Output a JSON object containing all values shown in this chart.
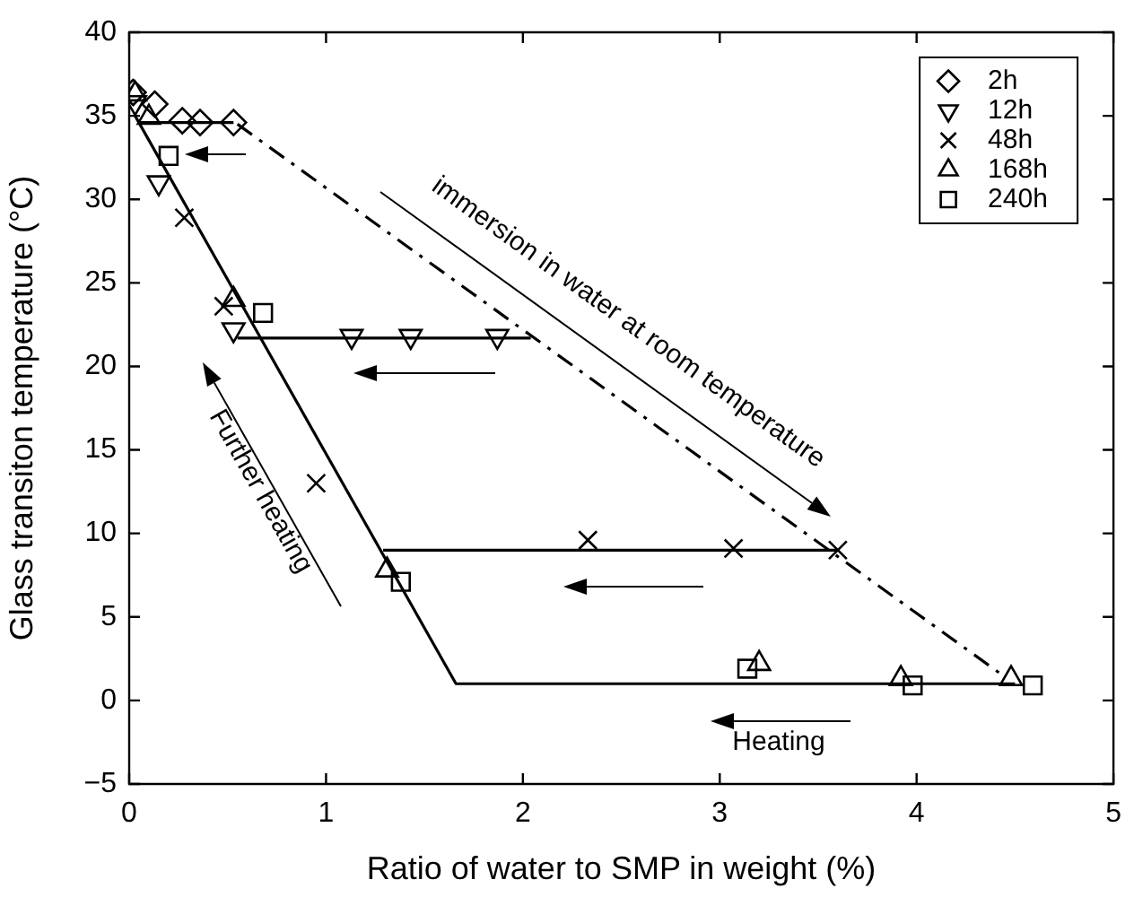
{
  "chart_data": {
    "type": "scatter",
    "xlabel": "Ratio of water to SMP in weight (%)",
    "ylabel": "Glass transiton temperature (°C)",
    "xlim": [
      0,
      5
    ],
    "xticks": [
      0,
      1,
      2,
      3,
      4,
      5
    ],
    "ylim": [
      -5,
      40
    ],
    "yticks": [
      {
        "value": -5,
        "label": "−5"
      },
      0,
      5,
      10,
      15,
      20,
      25,
      30,
      35,
      40
    ],
    "grid": false,
    "legend": "top right",
    "annotations": [
      "immersion in water at room temperature",
      "Further heating",
      "Heating"
    ],
    "series": [
      {
        "type": "line",
        "marker": "none",
        "line_style": "solid",
        "color": "#000000",
        "x": [
          0.03,
          1.66,
          4.5
        ],
        "values": [
          35.0,
          1.0,
          1.0
        ]
      },
      {
        "type": "line",
        "marker": "none",
        "line_style": "solid",
        "color": "#000000",
        "x": [
          0.05,
          0.53
        ],
        "values": [
          34.6,
          34.6
        ]
      },
      {
        "type": "line",
        "marker": "none",
        "line_style": "solid",
        "color": "#000000",
        "x": [
          0.55,
          2.04
        ],
        "values": [
          21.7,
          21.7
        ]
      },
      {
        "type": "line",
        "marker": "none",
        "line_style": "solid",
        "color": "#000000",
        "x": [
          1.29,
          3.6
        ],
        "values": [
          9.0,
          9.0
        ]
      },
      {
        "type": "line",
        "marker": "none",
        "line_style": "dashed",
        "color": "#000000",
        "x": [
          0.55,
          4.45
        ],
        "values": [
          34.5,
          1.4
        ]
      },
      {
        "name": "2h",
        "marker": "diamond",
        "color": "#000000",
        "x": [
          0.02,
          0.13,
          0.27,
          0.36,
          0.53
        ],
        "values": [
          36.4,
          35.7,
          34.7,
          34.6,
          34.6
        ]
      },
      {
        "name": "12h",
        "marker": "triangle-down",
        "color": "#000000",
        "x": [
          0.03,
          0.15,
          0.53,
          1.13,
          1.43,
          1.87
        ],
        "values": [
          35.8,
          31.0,
          22.2,
          21.8,
          21.8,
          21.8
        ]
      },
      {
        "name": "48h",
        "marker": "cross",
        "color": "#000000",
        "x": [
          0.28,
          0.48,
          0.95,
          2.33,
          3.07,
          3.6
        ],
        "values": [
          28.9,
          23.6,
          13.0,
          9.6,
          9.1,
          9.0
        ]
      },
      {
        "name": "168h",
        "marker": "triangle",
        "color": "#000000",
        "x": [
          0.03,
          0.1,
          0.53,
          1.31,
          3.2,
          3.92,
          4.48
        ],
        "values": [
          36.3,
          34.9,
          24.0,
          7.8,
          2.2,
          1.3,
          1.3
        ]
      },
      {
        "name": "240h",
        "marker": "square",
        "color": "#000000",
        "x": [
          0.2,
          0.68,
          1.38,
          3.14,
          3.98,
          4.59
        ],
        "values": [
          32.6,
          23.2,
          7.1,
          1.9,
          0.9,
          0.9
        ]
      }
    ]
  }
}
